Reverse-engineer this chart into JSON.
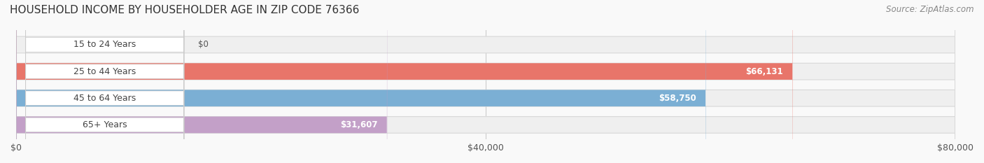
{
  "title": "HOUSEHOLD INCOME BY HOUSEHOLDER AGE IN ZIP CODE 76366",
  "source": "Source: ZipAtlas.com",
  "categories": [
    "15 to 24 Years",
    "25 to 44 Years",
    "45 to 64 Years",
    "65+ Years"
  ],
  "values": [
    0,
    66131,
    58750,
    31607
  ],
  "bar_colors": [
    "#f5c992",
    "#e8756a",
    "#7bafd4",
    "#c3a0c8"
  ],
  "label_colors": [
    "#555555",
    "#ffffff",
    "#ffffff",
    "#555555"
  ],
  "bar_bg_color": "#efefef",
  "bar_edge_color": "#d8d8d8",
  "label_bg_color": "#ffffff",
  "label_text_color": "#444444",
  "xlim": [
    0,
    80000
  ],
  "xticks": [
    0,
    40000,
    80000
  ],
  "xtick_labels": [
    "$0",
    "$40,000",
    "$80,000"
  ],
  "value_labels": [
    "$0",
    "$66,131",
    "$58,750",
    "$31,607"
  ],
  "bar_height": 0.62,
  "background_color": "#f9f9f9",
  "title_fontsize": 11,
  "source_fontsize": 8.5,
  "tick_fontsize": 9,
  "label_fontsize": 9,
  "value_fontsize": 8.5
}
